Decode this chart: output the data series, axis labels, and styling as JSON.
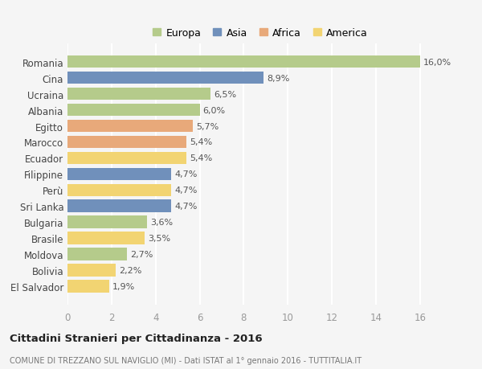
{
  "countries": [
    "Romania",
    "Cina",
    "Ucraina",
    "Albania",
    "Egitto",
    "Marocco",
    "Ecuador",
    "Filippine",
    "Perù",
    "Sri Lanka",
    "Bulgaria",
    "Brasile",
    "Moldova",
    "Bolivia",
    "El Salvador"
  ],
  "values": [
    16.0,
    8.9,
    6.5,
    6.0,
    5.7,
    5.4,
    5.4,
    4.7,
    4.7,
    4.7,
    3.6,
    3.5,
    2.7,
    2.2,
    1.9
  ],
  "labels": [
    "16,0%",
    "8,9%",
    "6,5%",
    "6,0%",
    "5,7%",
    "5,4%",
    "5,4%",
    "4,7%",
    "4,7%",
    "4,7%",
    "3,6%",
    "3,5%",
    "2,7%",
    "2,2%",
    "1,9%"
  ],
  "continent": [
    "Europa",
    "Asia",
    "Europa",
    "Europa",
    "Africa",
    "Africa",
    "America",
    "Asia",
    "America",
    "Asia",
    "Europa",
    "America",
    "Europa",
    "America",
    "America"
  ],
  "colors": {
    "Europa": "#b5cb8b",
    "Asia": "#7090bb",
    "Africa": "#e8a97a",
    "America": "#f2d472"
  },
  "xlim": [
    0,
    17.5
  ],
  "xticks": [
    0,
    2,
    4,
    6,
    8,
    10,
    12,
    14,
    16
  ],
  "title": "Cittadini Stranieri per Cittadinanza - 2016",
  "subtitle": "COMUNE DI TREZZANO SUL NAVIGLIO (MI) - Dati ISTAT al 1° gennaio 2016 - TUTTITALIA.IT",
  "background_color": "#f5f5f5",
  "grid_color": "#ffffff",
  "bar_height": 0.78,
  "legend_order": [
    "Europa",
    "Asia",
    "Africa",
    "America"
  ]
}
